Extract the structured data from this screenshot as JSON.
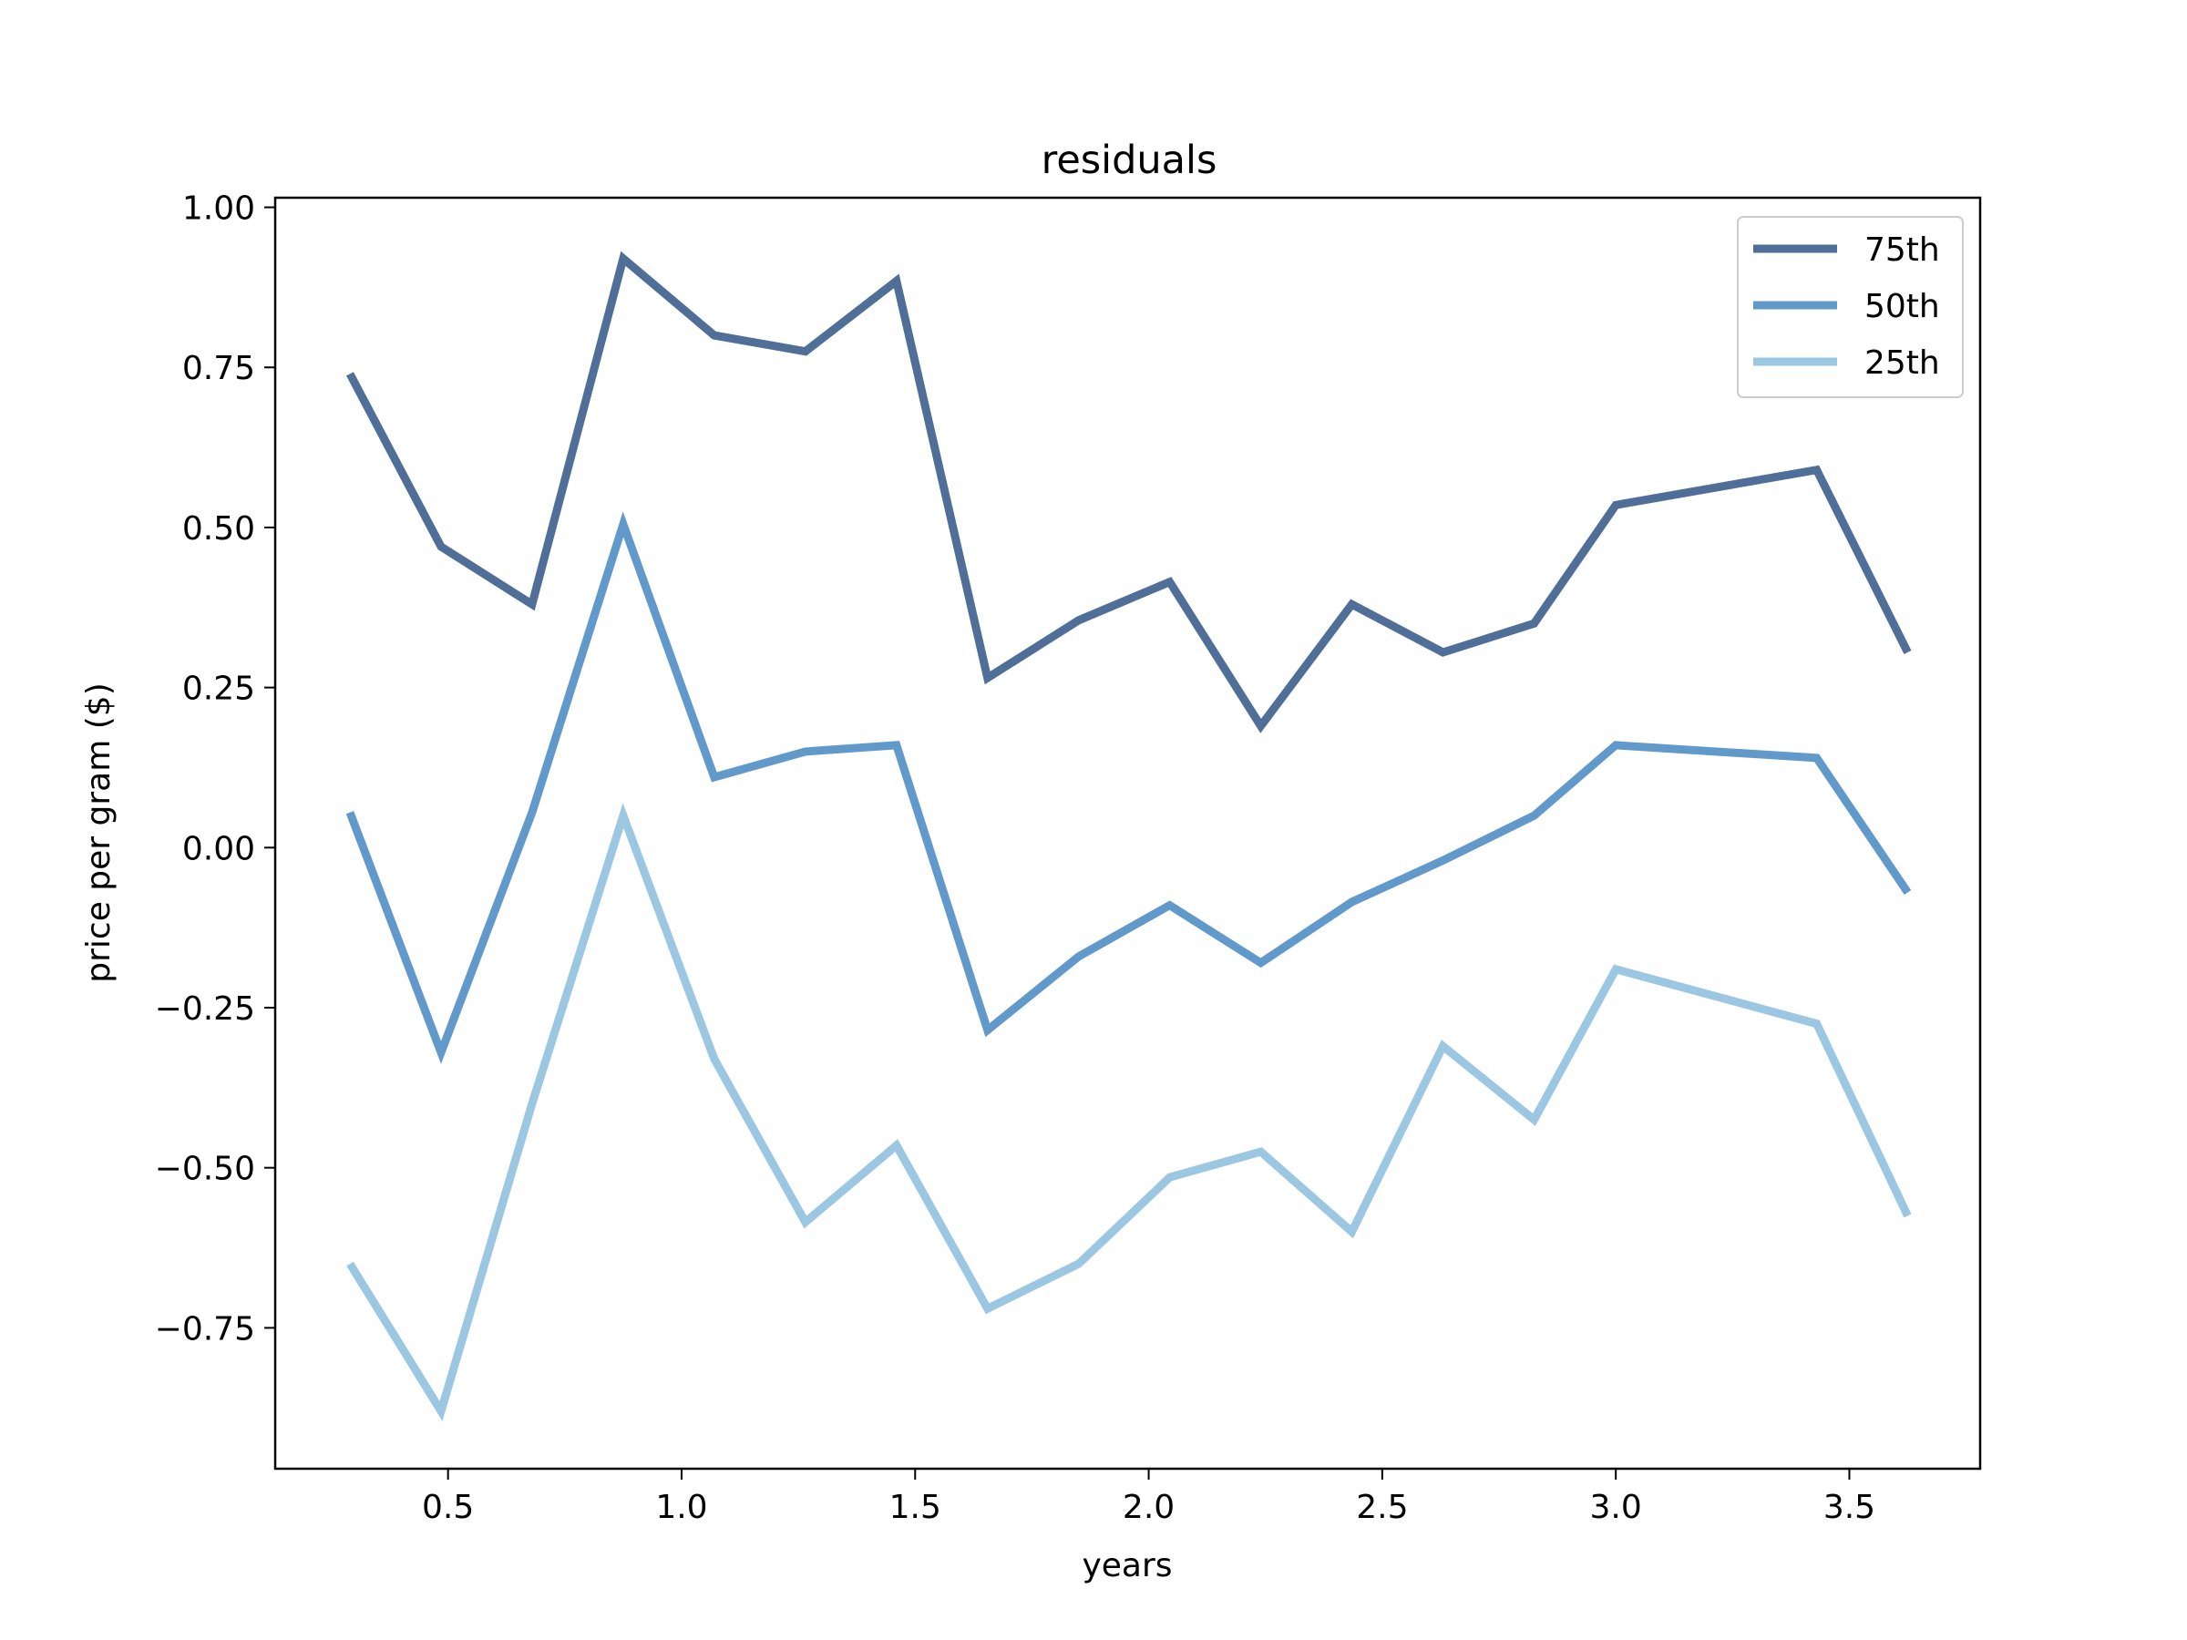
{
  "chart_data": {
    "type": "line",
    "title": "residuals",
    "xlabel": "years",
    "ylabel": "price per gram ($)",
    "xlim": [
      0.13,
      3.78
    ],
    "ylim": [
      -0.97,
      1.015
    ],
    "xticks": [
      0.5,
      1.0,
      1.5,
      2.0,
      2.5,
      3.0,
      3.5
    ],
    "xtick_labels": [
      "0.5",
      "1.0",
      "1.5",
      "2.0",
      "2.5",
      "3.0",
      "3.5"
    ],
    "yticks": [
      1.0,
      0.75,
      0.5,
      0.25,
      0.0,
      -0.25,
      -0.5,
      -0.75
    ],
    "ytick_labels": [
      "1.00",
      "0.75",
      "0.50",
      "0.25",
      "0.00",
      "−0.25",
      "−0.50",
      "−0.75"
    ],
    "grid": false,
    "legend_position": "top-right",
    "x": [
      0.29,
      0.485,
      0.68,
      0.875,
      1.07,
      1.265,
      1.46,
      1.655,
      1.85,
      2.045,
      2.24,
      2.435,
      2.63,
      2.825,
      3.0,
      3.43,
      3.625
    ],
    "series": [
      {
        "name": "75th",
        "color": "#4f6f99",
        "values": [
          0.74,
          0.47,
          0.38,
          0.92,
          0.8,
          0.775,
          0.885,
          0.265,
          0.355,
          0.415,
          0.19,
          0.38,
          0.305,
          0.35,
          0.535,
          0.59,
          0.305
        ]
      },
      {
        "name": "50th",
        "color": "#6199cb",
        "values": [
          0.055,
          -0.32,
          0.055,
          0.505,
          0.11,
          0.15,
          0.16,
          -0.285,
          -0.17,
          -0.09,
          -0.18,
          -0.085,
          -0.02,
          0.05,
          0.16,
          0.14,
          -0.07
        ]
      },
      {
        "name": "25th",
        "color": "#9cc7e3",
        "values": [
          -0.65,
          -0.88,
          -0.4,
          0.05,
          -0.33,
          -0.585,
          -0.465,
          -0.72,
          -0.65,
          -0.515,
          -0.475,
          -0.6,
          -0.31,
          -0.425,
          -0.19,
          -0.275,
          -0.575
        ]
      }
    ]
  }
}
